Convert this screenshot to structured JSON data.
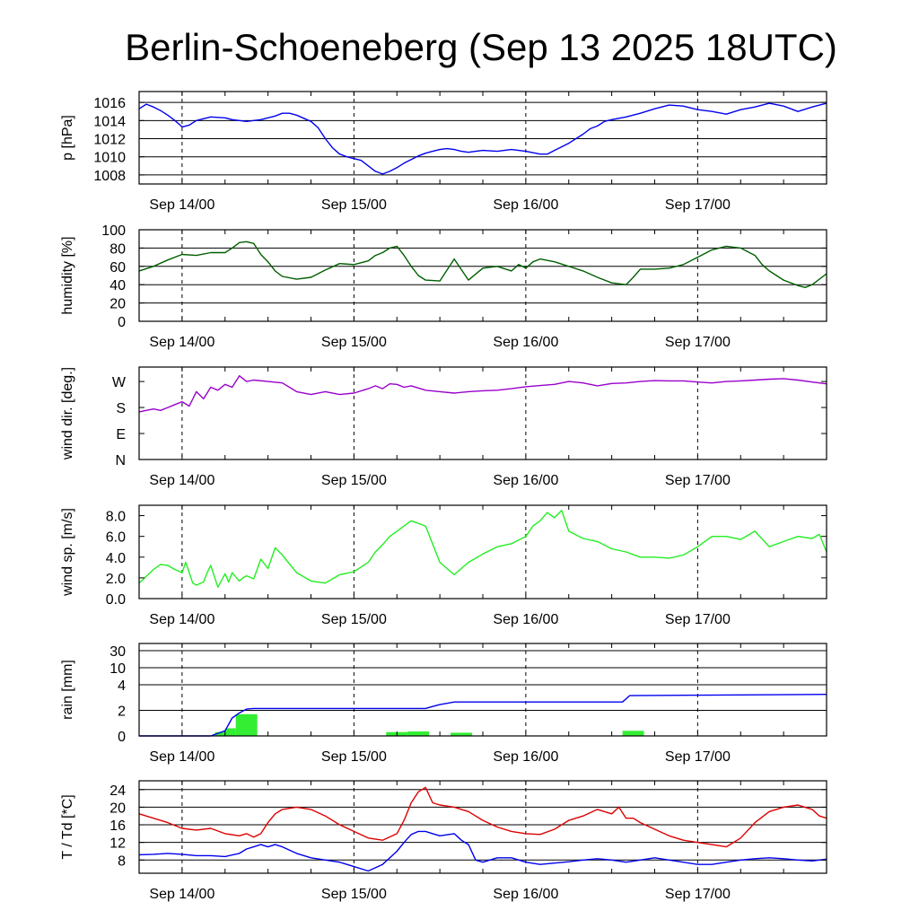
{
  "title": "Berlin-Schoeneberg (Sep 13 2025 18UTC)",
  "x_tick_labels": [
    "Sep 14/00",
    "Sep 15/00",
    "Sep 16/00",
    "Sep 17/00"
  ],
  "chart_data": [
    {
      "type": "line",
      "ylabel": "p [hPa]",
      "x_unit": "hours since Sep 13 2025 18UTC",
      "xlim": [
        0,
        96
      ],
      "ylim": [
        1007,
        1017.2
      ],
      "yticks": [
        1008,
        1010,
        1012,
        1014,
        1016
      ],
      "grid": true,
      "series": [
        {
          "color": "#0000ee",
          "x": [
            0,
            1,
            2,
            3,
            4,
            5,
            6,
            7,
            8,
            10,
            12,
            13,
            15,
            17,
            19,
            20,
            21,
            22,
            24,
            25,
            26,
            27,
            28,
            29,
            30,
            31,
            32,
            33,
            34,
            35,
            36,
            37,
            38,
            39,
            40,
            41,
            42,
            43,
            44,
            45,
            46,
            47,
            48,
            50,
            52,
            54,
            56,
            57,
            58,
            60,
            62,
            63,
            64,
            65,
            66,
            68,
            70,
            72,
            74,
            76,
            78,
            80,
            82,
            84,
            86,
            88,
            90,
            92,
            94,
            96
          ],
          "y": [
            1015.3,
            1015.8,
            1015.5,
            1015.1,
            1014.6,
            1014,
            1013.3,
            1013.5,
            1014,
            1014.4,
            1014.3,
            1014.1,
            1013.9,
            1014.1,
            1014.5,
            1014.8,
            1014.8,
            1014.6,
            1013.9,
            1013.2,
            1012,
            1011,
            1010.3,
            1010,
            1009.8,
            1009.6,
            1009,
            1008.4,
            1008.1,
            1008.4,
            1008.8,
            1009.3,
            1009.7,
            1010.1,
            1010.4,
            1010.6,
            1010.8,
            1010.9,
            1010.8,
            1010.6,
            1010.5,
            1010.6,
            1010.7,
            1010.6,
            1010.8,
            1010.6,
            1010.3,
            1010.3,
            1010.7,
            1011.5,
            1012.5,
            1013.1,
            1013.4,
            1013.9,
            1014.1,
            1014.4,
            1014.8,
            1015.3,
            1015.7,
            1015.6,
            1015.2,
            1015,
            1014.7,
            1015.2,
            1015.5,
            1015.9,
            1015.6,
            1015,
            1015.5,
            1015.9
          ]
        }
      ]
    },
    {
      "type": "line",
      "ylabel": "humidity [%]",
      "x_unit": "hours since Sep 13 2025 18UTC",
      "xlim": [
        0,
        96
      ],
      "ylim": [
        0,
        100
      ],
      "yticks": [
        0,
        20,
        40,
        60,
        80,
        100
      ],
      "grid": true,
      "series": [
        {
          "color": "#005f00",
          "x": [
            0,
            2,
            4,
            6,
            8,
            10,
            12,
            13,
            14,
            15,
            16,
            17,
            18,
            19,
            20,
            22,
            24,
            26,
            28,
            30,
            32,
            33,
            34,
            35,
            36,
            37,
            38,
            39,
            40,
            42,
            44,
            46,
            48,
            50,
            52,
            53,
            54,
            55,
            56,
            58,
            60,
            62,
            64,
            66,
            68,
            69,
            70,
            72,
            74,
            76,
            78,
            80,
            82,
            84,
            86,
            87,
            88,
            90,
            92,
            93,
            94,
            96
          ],
          "y": [
            55,
            60,
            67,
            73,
            72,
            75,
            75,
            80,
            86,
            87,
            85,
            73,
            65,
            55,
            49,
            46,
            48,
            56,
            63,
            62,
            66,
            72,
            75,
            80,
            82,
            72,
            60,
            50,
            45,
            44,
            68,
            45,
            58,
            60,
            55,
            62,
            58,
            65,
            68,
            65,
            60,
            55,
            48,
            42,
            40,
            48,
            57,
            57,
            58,
            62,
            70,
            78,
            82,
            80,
            72,
            62,
            55,
            45,
            39,
            37,
            40,
            52
          ]
        }
      ]
    },
    {
      "type": "line",
      "ylabel": "wind dir. [deg.]",
      "x_unit": "hours since Sep 13 2025 18UTC",
      "xlim": [
        0,
        96
      ],
      "ylim": [
        0,
        320
      ],
      "yticks": [
        0,
        90,
        180,
        270
      ],
      "ytick_labels": [
        "N",
        "E",
        "S",
        "W"
      ],
      "grid": false,
      "series": [
        {
          "color": "#9900cc",
          "x": [
            0,
            1,
            2,
            3,
            4,
            5,
            6,
            7,
            8,
            9,
            10,
            11,
            12,
            13,
            14,
            15,
            16,
            18,
            20,
            22,
            24,
            26,
            28,
            30,
            32,
            33,
            34,
            35,
            36,
            37,
            38,
            40,
            42,
            44,
            46,
            48,
            50,
            52,
            54,
            56,
            58,
            60,
            62,
            64,
            66,
            68,
            70,
            72,
            74,
            76,
            78,
            80,
            82,
            84,
            86,
            88,
            90,
            92,
            94,
            96
          ],
          "y": [
            165,
            170,
            175,
            170,
            180,
            190,
            200,
            185,
            235,
            210,
            250,
            240,
            260,
            250,
            290,
            270,
            275,
            270,
            265,
            235,
            225,
            235,
            225,
            230,
            245,
            255,
            245,
            262,
            260,
            250,
            255,
            240,
            235,
            230,
            235,
            238,
            240,
            245,
            252,
            256,
            260,
            270,
            265,
            255,
            263,
            265,
            270,
            273,
            272,
            272,
            268,
            265,
            270,
            272,
            275,
            278,
            280,
            275,
            268,
            262
          ]
        }
      ]
    },
    {
      "type": "line",
      "ylabel": "wind sp. [m/s]",
      "x_unit": "hours since Sep 13 2025 18UTC",
      "xlim": [
        0,
        96
      ],
      "ylim": [
        0,
        9
      ],
      "yticks": [
        0,
        2,
        4,
        6,
        8
      ],
      "ytick_labels": [
        "0.0",
        "2.0",
        "4.0",
        "6.0",
        "8.0"
      ],
      "grid": false,
      "series": [
        {
          "color": "#22ee22",
          "x": [
            0,
            2,
            3,
            4,
            5,
            6,
            6.5,
            7,
            7.5,
            8,
            9,
            9.5,
            10,
            11,
            12,
            12.5,
            13,
            14,
            14.5,
            15,
            16,
            17,
            18,
            19,
            20,
            22,
            24,
            26,
            28,
            30,
            32,
            33,
            34,
            35,
            36,
            37,
            38,
            40,
            42,
            44,
            46,
            48,
            50,
            52,
            54,
            55,
            56,
            57,
            58,
            59,
            60,
            62,
            64,
            66,
            68,
            70,
            72,
            74,
            76,
            78,
            80,
            82,
            84,
            86,
            88,
            90,
            92,
            94,
            95,
            96
          ],
          "y": [
            1.5,
            2.8,
            3.3,
            3.2,
            2.8,
            2.5,
            3.5,
            2.5,
            1.5,
            1.3,
            1.6,
            2.5,
            3.2,
            1.1,
            2.4,
            1.6,
            2.5,
            1.7,
            2.0,
            2.2,
            1.9,
            3.8,
            2.9,
            4.9,
            4.2,
            2.5,
            1.7,
            1.5,
            2.3,
            2.6,
            3.5,
            4.5,
            5.2,
            6.0,
            6.5,
            7.0,
            7.5,
            7.0,
            3.5,
            2.3,
            3.5,
            4.3,
            5.0,
            5.3,
            6.0,
            7.0,
            7.5,
            8.3,
            7.8,
            8.5,
            6.5,
            5.8,
            5.5,
            4.8,
            4.5,
            4.0,
            4.0,
            3.9,
            4.2,
            5.0,
            6.0,
            6.0,
            5.7,
            6.5,
            5.0,
            5.5,
            6.0,
            5.8,
            6.2,
            4.5
          ]
        }
      ]
    },
    {
      "type": "bar+line",
      "ylabel": "rain [mm]",
      "x_unit": "hours since Sep 13 2025 18UTC",
      "xlim": [
        0,
        96
      ],
      "yticks": [
        0,
        2,
        4,
        10,
        30
      ],
      "ytick_labels": [
        "0",
        "2",
        "4",
        "10",
        "30"
      ],
      "grid": true,
      "bars": {
        "color": "#33ee33",
        "x_start": [
          10.6,
          12.0,
          13.5,
          34.5,
          37.5,
          43.5,
          67.5
        ],
        "x_end": [
          12.0,
          13.5,
          16.5,
          37.5,
          40.5,
          46.5,
          70.5
        ],
        "values": [
          0.3,
          0.6,
          1.7,
          0.3,
          0.35,
          0.25,
          0.4
        ]
      },
      "series": [
        {
          "color": "#0000ee",
          "x": [
            0,
            10,
            12,
            13,
            14,
            15,
            16,
            40,
            41,
            42,
            43,
            44,
            67.5,
            68.5,
            96
          ],
          "y": [
            0,
            0,
            0.4,
            1.4,
            1.8,
            2.1,
            2.15,
            2.15,
            2.3,
            2.45,
            2.55,
            2.65,
            2.65,
            3.15,
            3.25
          ]
        }
      ]
    },
    {
      "type": "line",
      "ylabel": "T / Td [*C]",
      "x_unit": "hours since Sep 13 2025 18UTC",
      "xlim": [
        0,
        96
      ],
      "ylim": [
        5,
        26
      ],
      "yticks": [
        8,
        12,
        16,
        20,
        24
      ],
      "grid": true,
      "series": [
        {
          "color": "#dd0000",
          "x": [
            0,
            2,
            4,
            6,
            8,
            10,
            12,
            14,
            15,
            16,
            17,
            18,
            19,
            20,
            22,
            24,
            26,
            28,
            30,
            32,
            34,
            36,
            37,
            38,
            39,
            40,
            41,
            42,
            44,
            46,
            48,
            50,
            52,
            54,
            56,
            58,
            60,
            62,
            64,
            66,
            67,
            68,
            69,
            70,
            72,
            74,
            76,
            78,
            80,
            82,
            84,
            86,
            88,
            90,
            92,
            94,
            95,
            96
          ],
          "y": [
            18.5,
            17.5,
            16.5,
            15.2,
            14.8,
            15.2,
            14.0,
            13.5,
            14.0,
            13.2,
            14.0,
            16.5,
            18.5,
            19.5,
            20.0,
            19.5,
            18.0,
            16.0,
            14.5,
            13.0,
            12.5,
            14.0,
            17.0,
            21.0,
            23.5,
            24.5,
            21.0,
            20.5,
            20.0,
            19.0,
            17.0,
            15.5,
            14.5,
            14.0,
            13.8,
            15.0,
            17.0,
            18.0,
            19.5,
            18.5,
            20.0,
            17.5,
            17.5,
            16.5,
            15.0,
            13.5,
            12.5,
            12.0,
            11.5,
            11.0,
            13.0,
            16.5,
            19.0,
            20.0,
            20.5,
            19.5,
            18.0,
            17.5
          ]
        },
        {
          "color": "#0000ee",
          "x": [
            0,
            2,
            4,
            6,
            8,
            10,
            12,
            14,
            15,
            16,
            17,
            18,
            19,
            20,
            22,
            24,
            26,
            28,
            30,
            32,
            34,
            36,
            37,
            38,
            39,
            40,
            41,
            42,
            44,
            45,
            46,
            47,
            48,
            50,
            52,
            54,
            56,
            58,
            60,
            62,
            64,
            66,
            68,
            70,
            72,
            74,
            76,
            78,
            80,
            82,
            84,
            86,
            88,
            90,
            92,
            94,
            96
          ],
          "y": [
            9.2,
            9.3,
            9.5,
            9.3,
            9.0,
            9.0,
            8.8,
            9.5,
            10.5,
            11.0,
            11.5,
            11.0,
            11.5,
            11.0,
            9.5,
            8.5,
            8.0,
            7.5,
            6.5,
            5.5,
            7.0,
            10.0,
            12.0,
            13.8,
            14.5,
            14.5,
            14.0,
            13.5,
            14.0,
            12.5,
            11.5,
            8.0,
            7.5,
            8.5,
            8.5,
            7.5,
            7.0,
            7.3,
            7.6,
            8.0,
            8.3,
            8.0,
            7.5,
            8.0,
            8.5,
            8.0,
            7.5,
            7.0,
            7.0,
            7.5,
            8.0,
            8.3,
            8.5,
            8.3,
            8.0,
            7.8,
            8.2
          ]
        }
      ]
    }
  ]
}
